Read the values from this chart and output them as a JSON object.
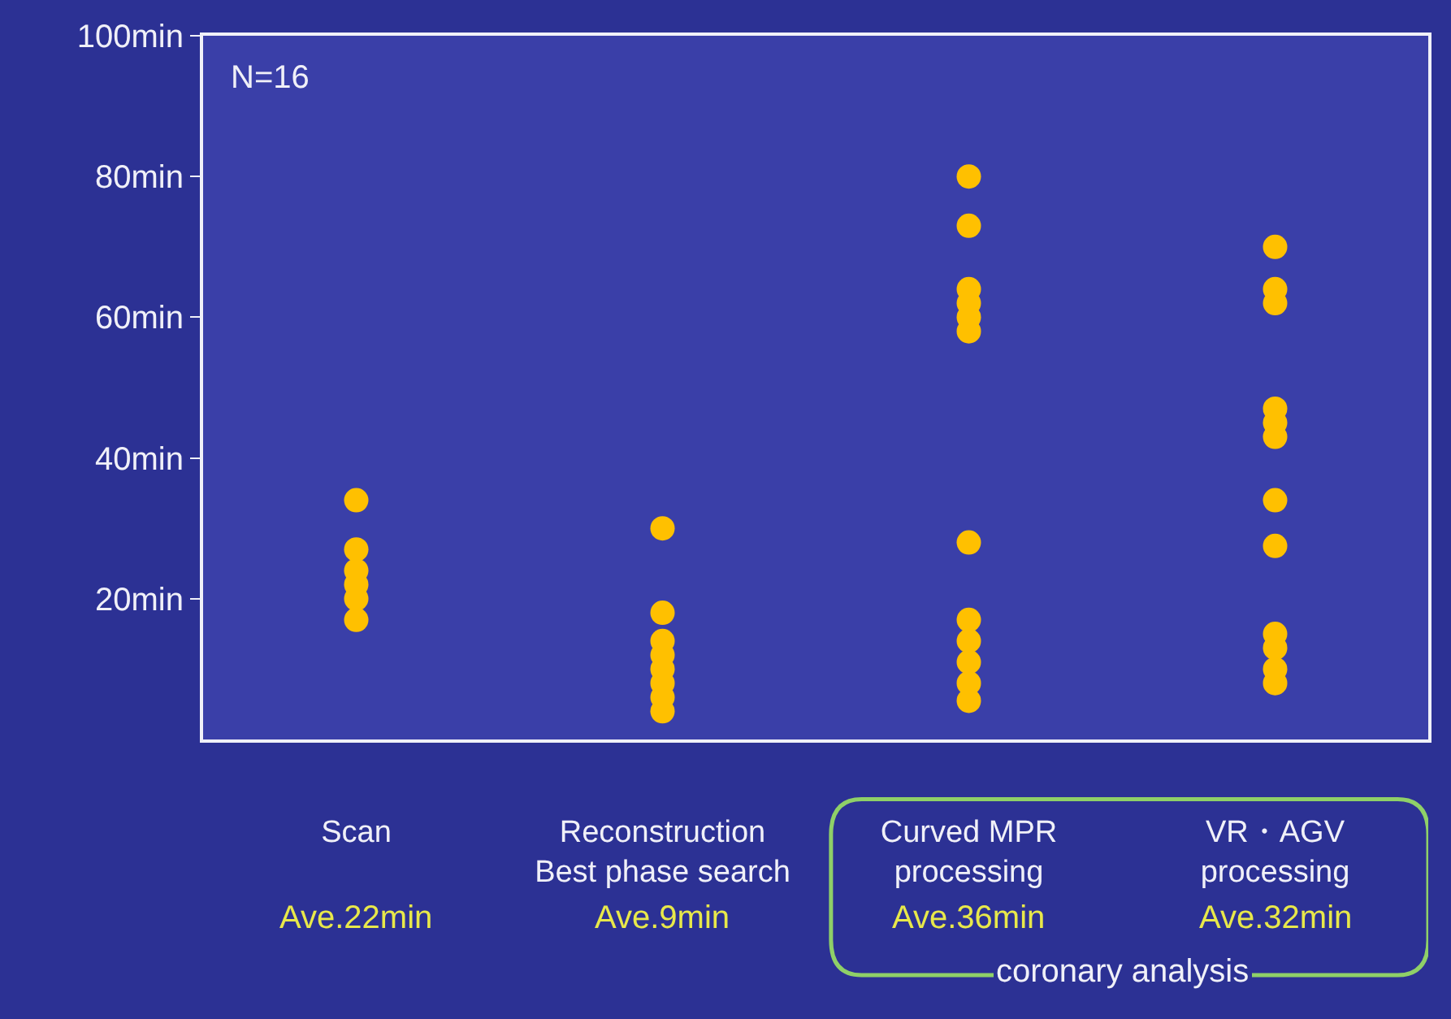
{
  "chart_data": {
    "type": "scatter",
    "categories": [
      "Scan",
      "Reconstruction\nBest phase search",
      "Curved MPR\nprocessing",
      "VR・AGV\nprocessing"
    ],
    "series": [
      {
        "color": "#ffc000",
        "x": [
          "Scan",
          "Scan",
          "Scan",
          "Scan",
          "Scan",
          "Scan",
          "Scan",
          "Scan",
          "Reconstruction\nBest phase search",
          "Reconstruction\nBest phase search",
          "Reconstruction\nBest phase search",
          "Reconstruction\nBest phase search",
          "Reconstruction\nBest phase search",
          "Reconstruction\nBest phase search",
          "Reconstruction\nBest phase search",
          "Reconstruction\nBest phase search",
          "Curved MPR\nprocessing",
          "Curved MPR\nprocessing",
          "Curved MPR\nprocessing",
          "Curved MPR\nprocessing",
          "Curved MPR\nprocessing",
          "Curved MPR\nprocessing",
          "Curved MPR\nprocessing",
          "Curved MPR\nprocessing",
          "Curved MPR\nprocessing",
          "Curved MPR\nprocessing",
          "Curved MPR\nprocessing",
          "Curved MPR\nprocessing",
          "VR・AGV\nprocessing",
          "VR・AGV\nprocessing",
          "VR・AGV\nprocessing",
          "VR・AGV\nprocessing",
          "VR・AGV\nprocessing",
          "VR・AGV\nprocessing",
          "VR・AGV\nprocessing",
          "VR・AGV\nprocessing",
          "VR・AGV\nprocessing",
          "VR・AGV\nprocessing",
          "VR・AGV\nprocessing",
          "VR・AGV\nprocessing"
        ],
        "values": [
          34,
          27,
          null,
          24,
          22,
          20,
          null,
          17,
          30,
          18,
          14,
          12,
          10,
          8,
          6,
          4,
          80,
          73,
          64,
          62,
          60,
          58,
          28,
          17,
          14,
          11,
          8,
          5.5,
          70,
          64,
          62,
          47,
          45,
          43,
          34,
          27.5,
          15,
          13,
          10,
          8
        ]
      }
    ],
    "ylim": [
      0,
      100
    ],
    "yticks": [
      {
        "value": 20,
        "label": "20min"
      },
      {
        "value": 40,
        "label": "40min"
      },
      {
        "value": 60,
        "label": "60min"
      },
      {
        "value": 80,
        "label": "80min"
      },
      {
        "value": 100,
        "label": "100min"
      }
    ],
    "annotations": [
      "N=16",
      "Ave.22min",
      "Ave.9min",
      "Ave.36min",
      "Ave.32min",
      "coronary analysis"
    ],
    "grid": false,
    "legend": false,
    "marker": "circle"
  }
}
